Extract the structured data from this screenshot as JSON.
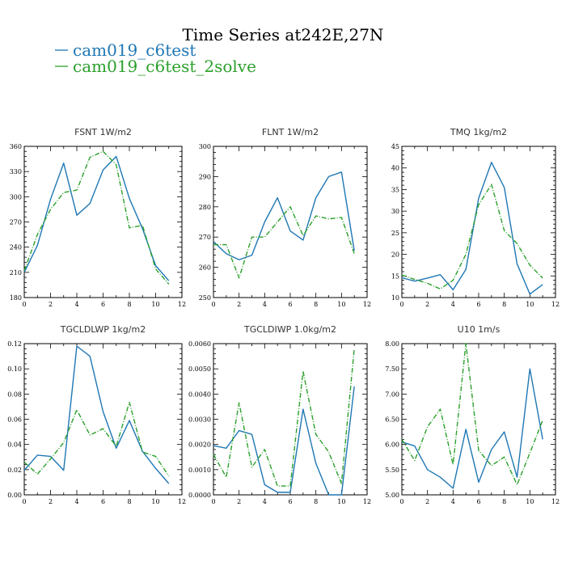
{
  "figure": {
    "title": "Time Series at242E,27N"
  },
  "legend": [
    {
      "name": "cam019_c6test",
      "color": "#1f77b4",
      "dash": "solid"
    },
    {
      "name": "cam019_c6test_2solve",
      "color": "#2ca02c",
      "dash": "dashdot"
    }
  ],
  "chart_data": [
    {
      "id": "fsnt",
      "type": "line",
      "title": "FSNT  1W/m2",
      "x": [
        0,
        1,
        2,
        3,
        4,
        5,
        6,
        7,
        8,
        9,
        10,
        11
      ],
      "xlim": [
        0,
        12
      ],
      "xticks": [
        "0",
        "2",
        "4",
        "6",
        "8",
        "10",
        "12"
      ],
      "ylim": [
        180,
        360
      ],
      "yticks": [
        "180",
        "210",
        "240",
        "270",
        "300",
        "330",
        "360"
      ],
      "series": [
        {
          "name": "cam019_c6test",
          "values": [
            210,
            242,
            297,
            340,
            278,
            292,
            332,
            348,
            298,
            262,
            218,
            200
          ]
        },
        {
          "name": "cam019_c6test_2solve",
          "values": [
            212,
            255,
            285,
            305,
            308,
            347,
            354,
            338,
            263,
            266,
            214,
            196
          ]
        }
      ]
    },
    {
      "id": "flnt",
      "type": "line",
      "title": "FLNT  1W/m2",
      "x": [
        0,
        1,
        2,
        3,
        4,
        5,
        6,
        7,
        8,
        9,
        10,
        11
      ],
      "xlim": [
        0,
        12
      ],
      "xticks": [
        "0",
        "2",
        "4",
        "6",
        "8",
        "10",
        "12"
      ],
      "ylim": [
        250,
        300
      ],
      "yticks": [
        "250",
        "260",
        "270",
        "280",
        "290",
        "300"
      ],
      "series": [
        {
          "name": "cam019_c6test",
          "values": [
            268.5,
            264.5,
            262.5,
            264,
            275,
            283,
            272,
            269,
            283,
            290,
            291.5,
            265.5
          ]
        },
        {
          "name": "cam019_c6test_2solve",
          "values": [
            267.5,
            267.5,
            256.5,
            270,
            270,
            275,
            280,
            270.5,
            277,
            276,
            276.5,
            264.5
          ]
        }
      ]
    },
    {
      "id": "tmq",
      "type": "line",
      "title": "TMQ  1kg/m2",
      "x": [
        0,
        1,
        2,
        3,
        4,
        5,
        6,
        7,
        8,
        9,
        10,
        11
      ],
      "xlim": [
        0,
        12
      ],
      "xticks": [
        "0",
        "2",
        "4",
        "6",
        "8",
        "10",
        "12"
      ],
      "ylim": [
        10,
        45
      ],
      "yticks": [
        "10",
        "15",
        "20",
        "25",
        "30",
        "35",
        "40",
        "45"
      ],
      "series": [
        {
          "name": "cam019_c6test",
          "values": [
            14.6,
            13.8,
            14.5,
            15.3,
            11.8,
            16.5,
            33,
            41.3,
            35.5,
            17.8,
            10.8,
            13
          ]
        },
        {
          "name": "cam019_c6test_2solve",
          "values": [
            15.2,
            14.2,
            13.3,
            12,
            14,
            20,
            31.5,
            36.2,
            25.5,
            22.5,
            17.5,
            14.5
          ]
        }
      ]
    },
    {
      "id": "tgcldlwp",
      "type": "line",
      "title": "TGCLDLWP  1kg/m2",
      "x": [
        0,
        1,
        2,
        3,
        4,
        5,
        6,
        7,
        8,
        9,
        10,
        11
      ],
      "xlim": [
        0,
        12
      ],
      "xticks": [
        "0",
        "2",
        "4",
        "6",
        "8",
        "10",
        "12"
      ],
      "ylim": [
        0,
        0.12
      ],
      "yticks": [
        "0.00",
        "0.02",
        "0.04",
        "0.06",
        "0.08",
        "0.10",
        "0.12"
      ],
      "series": [
        {
          "name": "cam019_c6test",
          "values": [
            0.0195,
            0.0315,
            0.0305,
            0.0195,
            0.118,
            0.11,
            0.066,
            0.037,
            0.059,
            0.0345,
            0.021,
            0.009
          ]
        },
        {
          "name": "cam019_c6test_2solve",
          "values": [
            0.026,
            0.0165,
            0.0285,
            0.0415,
            0.0675,
            0.0475,
            0.0525,
            0.0385,
            0.0735,
            0.034,
            0.0305,
            0.015
          ]
        }
      ]
    },
    {
      "id": "tgcldiwp",
      "type": "line",
      "title": "TGCLDIWP  1.0kg/m2",
      "x": [
        0,
        1,
        2,
        3,
        4,
        5,
        6,
        7,
        8,
        9,
        10,
        11
      ],
      "xlim": [
        0,
        12
      ],
      "xticks": [
        "0",
        "2",
        "4",
        "6",
        "8",
        "10",
        "12"
      ],
      "ylim": [
        0,
        0.006
      ],
      "yticks": [
        "0.0000",
        "0.0010",
        "0.0020",
        "0.0030",
        "0.0040",
        "0.0050",
        "0.0060"
      ],
      "series": [
        {
          "name": "cam019_c6test",
          "values": [
            0.00195,
            0.00185,
            0.00255,
            0.0024,
            0.0004,
            0.0001,
            0.0001,
            0.0034,
            0.00125,
            0.0,
            0.0,
            0.0043
          ]
        },
        {
          "name": "cam019_c6test_2solve",
          "values": [
            0.0016,
            0.0007,
            0.00365,
            0.0011,
            0.0018,
            0.00035,
            0.00035,
            0.0049,
            0.0024,
            0.0017,
            0.00045,
            0.0058
          ]
        }
      ]
    },
    {
      "id": "u10",
      "type": "line",
      "title": "U10  1m/s",
      "x": [
        0,
        1,
        2,
        3,
        4,
        5,
        6,
        7,
        8,
        9,
        10,
        11
      ],
      "xlim": [
        0,
        12
      ],
      "xticks": [
        "0",
        "2",
        "4",
        "6",
        "8",
        "10",
        "12"
      ],
      "ylim": [
        5,
        8
      ],
      "yticks": [
        "5.00",
        "5.50",
        "6.00",
        "6.50",
        "7.00",
        "7.50",
        "8.00"
      ],
      "series": [
        {
          "name": "cam019_c6test",
          "values": [
            6.05,
            5.97,
            5.5,
            5.35,
            5.13,
            6.3,
            5.25,
            5.9,
            6.25,
            5.35,
            7.5,
            6.1
          ]
        },
        {
          "name": "cam019_c6test_2solve",
          "values": [
            6.1,
            5.68,
            6.35,
            6.7,
            5.6,
            8.0,
            5.88,
            5.58,
            5.75,
            5.2,
            5.83,
            6.48
          ]
        }
      ]
    }
  ]
}
